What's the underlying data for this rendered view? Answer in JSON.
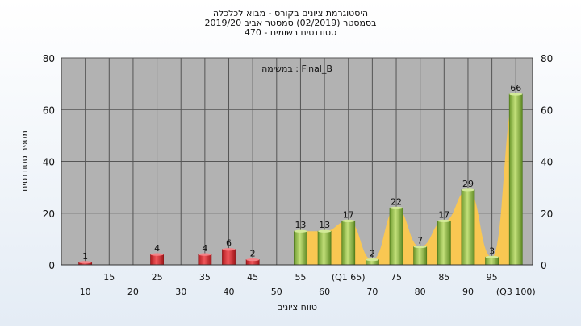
{
  "title_lines": [
    "היסטוגרמת ציונים בקורס - מבוא לכלכלה",
    "בסמסטר  (02/2019)  סמסטר אביב 2019/20",
    "סטודנטים רשומים - 470"
  ],
  "chart_data": {
    "type": "bar",
    "annotation": "Final_B : במשימה",
    "xlabel": "טווח ציונים",
    "ylabel": "מספר סטודנטים",
    "ylim": [
      0,
      80
    ],
    "yticks": [
      0,
      20,
      40,
      60,
      80
    ],
    "grid": true,
    "categories": [
      "10",
      "15",
      "20",
      "25",
      "30",
      "35",
      "40",
      "45",
      "50",
      "55",
      "60",
      "(Q1 65)",
      "70",
      "75",
      "80",
      "85",
      "90",
      "95",
      "(Q3 100)"
    ],
    "values": [
      1,
      0,
      0,
      4,
      0,
      4,
      6,
      2,
      0,
      13,
      13,
      17,
      2,
      22,
      7,
      17,
      29,
      3,
      66
    ],
    "bar_colors": {
      "below_pass": "#d8262b",
      "pass": "#8dbb47"
    },
    "pass_threshold": 55,
    "area_color": "#ffc94a"
  }
}
